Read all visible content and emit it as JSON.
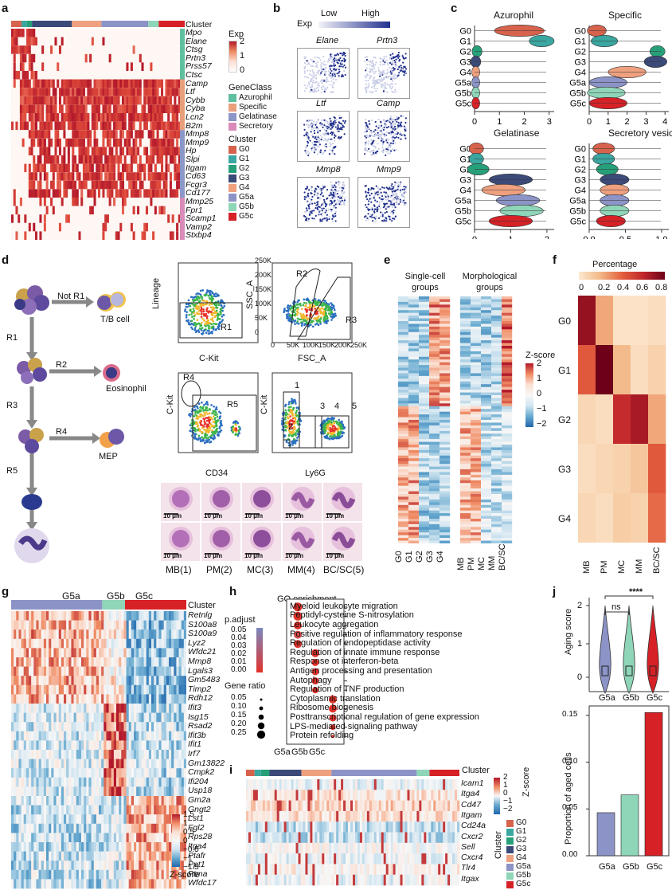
{
  "panels": {
    "a": "a",
    "b": "b",
    "c": "c",
    "d": "d",
    "e": "e",
    "f": "f",
    "g": "g",
    "h": "h",
    "i": "i",
    "j": "j"
  },
  "panel_a": {
    "cluster_label": "Cluster",
    "genes": [
      "Mpo",
      "Elane",
      "Ctsg",
      "Prtn3",
      "Prss57",
      "Ctsc",
      "Camp",
      "Ltf",
      "Cybb",
      "Cyba",
      "Lcn2",
      "B2m",
      "Mmp8",
      "Mmp9",
      "Hp",
      "Slpi",
      "Itgam",
      "Cd63",
      "Fcgr3",
      "Cd177",
      "Mmp25",
      "Fpr1",
      "Scamp1",
      "Vamp2",
      "Stxbp4"
    ],
    "exp_title": "Exp",
    "exp_ticks": [
      "2",
      "1",
      "0"
    ],
    "geneclass_title": "GeneClass",
    "geneclasses": [
      {
        "name": "Azurophil",
        "color": "#5fbf9f"
      },
      {
        "name": "Specific",
        "color": "#e8a07c"
      },
      {
        "name": "Gelatinase",
        "color": "#8b96c9"
      },
      {
        "name": "Secretory",
        "color": "#d98bb9"
      }
    ],
    "cluster_title": "Cluster",
    "clusters": [
      {
        "name": "G0",
        "color": "#d7634c"
      },
      {
        "name": "G1",
        "color": "#3aa7a0"
      },
      {
        "name": "G2",
        "color": "#27a07a"
      },
      {
        "name": "G3",
        "color": "#3b4a78"
      },
      {
        "name": "G4",
        "color": "#eea07f"
      },
      {
        "name": "G5a",
        "color": "#8c93c6"
      },
      {
        "name": "G5b",
        "color": "#8fd5b8"
      },
      {
        "name": "G5c",
        "color": "#d62127"
      }
    ]
  },
  "panel_b": {
    "exp_label": "Exp",
    "low": "Low",
    "high": "High",
    "genes": [
      "Elane",
      "Prtn3",
      "Ltf",
      "Camp",
      "Mmp8",
      "Mmp9"
    ]
  },
  "panel_c": {
    "titles": [
      "Azurophil",
      "Specific",
      "Gelatinase",
      "Secretory vesicle"
    ],
    "groups": [
      "G0",
      "G1",
      "G2",
      "G3",
      "G4",
      "G5a",
      "G5b",
      "G5c"
    ],
    "x_ticks_a": [
      "0",
      "1",
      "2",
      "3"
    ],
    "x_ticks_b": [
      "0",
      "1",
      "2",
      "3",
      "4"
    ],
    "x_ticks_c": [
      "0",
      "1",
      "2"
    ],
    "x_ticks_d": [
      "0.0",
      "0.5",
      "1.0"
    ]
  },
  "panel_d": {
    "not_r1": "Not R1",
    "tb_cell": "T/B cell",
    "r1": "R1",
    "r2": "R2",
    "r3": "R3",
    "r4": "R4",
    "r5": "R5",
    "eosinophil": "Eosinophil",
    "mep": "MEP",
    "fc1": {
      "ylabel": "Lineage",
      "xlabel": "C-Kit",
      "gate": "R1"
    },
    "fc2": {
      "ylabel": "SSC_A",
      "xlabel": "FSC_A",
      "gates": [
        "R2",
        "R3"
      ],
      "yticks": [
        "250K",
        "200K",
        "150K",
        "100K",
        "50K",
        "0"
      ],
      "xticks": [
        "0",
        "50K",
        "100K",
        "150K",
        "200K",
        "250K"
      ]
    },
    "fc3": {
      "ylabel": "C-Kit",
      "xlabel": "CD34",
      "gates": [
        "R4",
        "R5"
      ]
    },
    "fc4": {
      "ylabel": "C-Kit",
      "xlabel": "Ly6G",
      "gates": [
        "1",
        "2",
        "3",
        "4",
        "5"
      ]
    },
    "scale": "10 μm",
    "cell_labels": [
      "MB(1)",
      "PM(2)",
      "MC(3)",
      "MM(4)",
      "BC/SC(5)"
    ]
  },
  "panel_e": {
    "col1_title": "Single-cell groups",
    "col2_title": "Morphological groups",
    "zscore": "Z-score",
    "z_ticks": [
      "2",
      "1",
      "0",
      "−1",
      "−2"
    ],
    "x1": [
      "G0",
      "G1",
      "G2",
      "G3",
      "G4"
    ],
    "x2": [
      "MB",
      "PM",
      "MC",
      "MM",
      "BC/SC"
    ]
  },
  "panel_f": {
    "title": "Percentage",
    "ticks": [
      "0",
      "0.2",
      "0.4",
      "0.6",
      "0.8"
    ],
    "rows": [
      "G0",
      "G1",
      "G2",
      "G3",
      "G4"
    ],
    "cols": [
      "MB",
      "PM",
      "MC",
      "MM",
      "BC/SC"
    ],
    "values": [
      [
        0.75,
        0.25,
        0.02,
        0.02,
        0.05
      ],
      [
        0.45,
        0.85,
        0.2,
        0.05,
        0.1
      ],
      [
        0.08,
        0.05,
        0.62,
        0.7,
        0.25
      ],
      [
        0.05,
        0.08,
        0.1,
        0.15,
        0.45
      ],
      [
        0.08,
        0.05,
        0.12,
        0.1,
        0.4
      ]
    ]
  },
  "panel_g": {
    "groups": [
      "G5a",
      "G5b",
      "G5c"
    ],
    "cluster_label": "Cluster",
    "genes": [
      "Retnlg",
      "S100a8",
      "S100a9",
      "Lyz2",
      "Wfdc21",
      "Mmp8",
      "Lgals3",
      "Gm5483",
      "Timp2",
      "Rdh12",
      "Ifit3",
      "Isg15",
      "Rsad2",
      "Ifit3b",
      "Ifit1",
      "Irf7",
      "Gm13822",
      "Cmpk2",
      "Ifi204",
      "Usp18",
      "Gm2a",
      "Gngt2",
      "Lst1",
      "Fgl2",
      "Rps28",
      "Itga4",
      "Ptafr",
      "Ppt1",
      "Ptma",
      "Wfdc17"
    ],
    "zscore": "Z-score",
    "z_ticks": [
      "1.5",
      "1",
      "0.5",
      "0",
      "−0.5",
      "−1",
      "−1.5"
    ]
  },
  "panel_h": {
    "title": "GO enrichment",
    "padj_title": "p.adjust",
    "padj_ticks": [
      "0.05",
      "0.04",
      "0.03",
      "0.02",
      "0.01",
      "0.00"
    ],
    "ratio_title": "Gene ratio",
    "ratio_ticks": [
      "0.05",
      "0.10",
      "0.15",
      "0.20",
      "0.25"
    ],
    "x": [
      "G5a",
      "G5b",
      "G5c"
    ],
    "terms": [
      "Myeloid leukocyte migration",
      "Peptidyl-cysteine S-nitrosylation",
      "Leukocyte aggregation",
      "Positive regulation of inflammatory response",
      "Regulation of endopeptidase activity",
      "Regulation of innate immune response",
      "Response ot interferon-beta",
      "Antigen processing and presentation",
      "Autophagy",
      "Regulation of TNF production",
      "Cytoplasmic translation",
      "Ribosome biogenesis",
      "Posttranscriptional regulation of gene expression",
      "LPS-mediated signaling pathway",
      "Protein refolding"
    ]
  },
  "panel_i": {
    "cluster_label": "Cluster",
    "genes": [
      "Icam1",
      "Itga4",
      "Cd47",
      "Itgam",
      "Cd24a",
      "Cxcr2",
      "Sell",
      "Cxcr4",
      "Tlr4",
      "Itgax"
    ],
    "zscore": "Z-score",
    "z_ticks": [
      "2",
      "1",
      "0",
      "−1",
      "−2"
    ],
    "legend_title": "Cluster",
    "legend": [
      "G0",
      "G1",
      "G2",
      "G3",
      "G4",
      "G5a",
      "G5b",
      "G5c"
    ]
  },
  "panel_j": {
    "violin_ylabel": "Aging score",
    "violin_yticks": [
      "2",
      "1",
      "0"
    ],
    "x": [
      "G5a",
      "G5b",
      "G5c"
    ],
    "sig_ns": "ns",
    "sig_star": "****",
    "bar_ylabel": "Proportion of aged cells",
    "bar_yticks": [
      "0.15",
      "0.10",
      "0.05",
      "0.00"
    ]
  },
  "chart_data": [
    {
      "type": "bar",
      "title": "",
      "categories": [
        "G5a",
        "G5b",
        "G5c"
      ],
      "values": [
        0.046,
        0.065,
        0.153
      ],
      "ylabel": "Proportion of aged cells",
      "ylim": [
        0,
        0.16
      ],
      "colors": [
        "#8c93c6",
        "#8fd5b8",
        "#d62127"
      ]
    },
    {
      "type": "heatmap",
      "title": "Percentage",
      "rows": [
        "G0",
        "G1",
        "G2",
        "G3",
        "G4"
      ],
      "cols": [
        "MB",
        "PM",
        "MC",
        "MM",
        "BC/SC"
      ],
      "values": [
        [
          0.75,
          0.25,
          0.02,
          0.02,
          0.05
        ],
        [
          0.45,
          0.85,
          0.2,
          0.05,
          0.1
        ],
        [
          0.08,
          0.05,
          0.62,
          0.7,
          0.25
        ],
        [
          0.05,
          0.08,
          0.1,
          0.15,
          0.45
        ],
        [
          0.08,
          0.05,
          0.12,
          0.1,
          0.4
        ]
      ]
    }
  ]
}
